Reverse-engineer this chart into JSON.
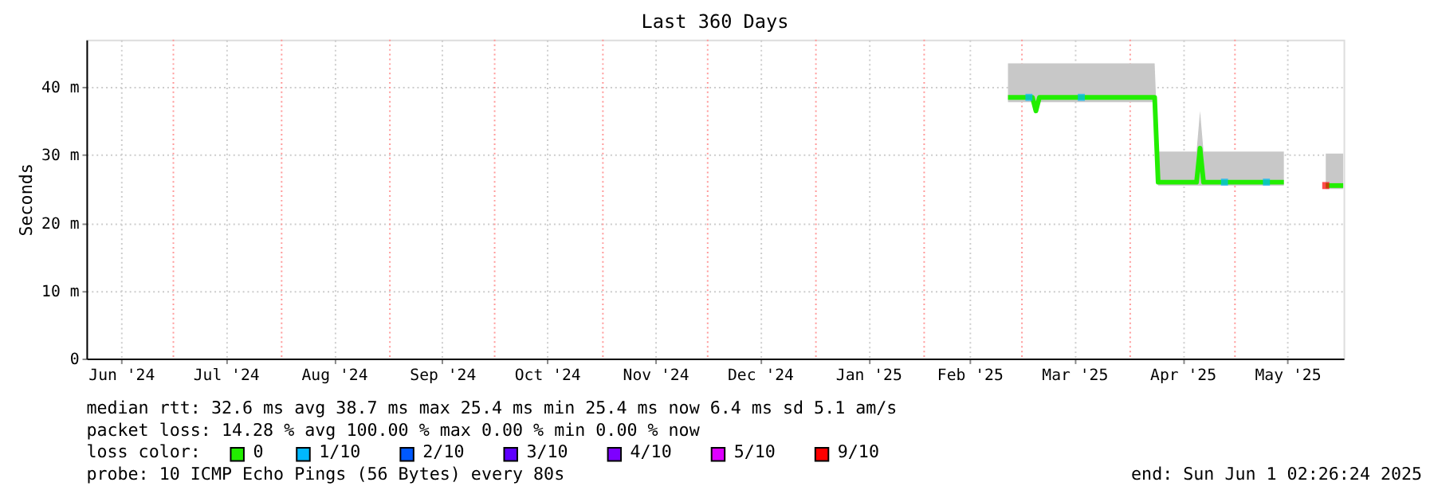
{
  "chart_data": {
    "type": "line",
    "title": "Last 360 Days",
    "ylabel": "Seconds",
    "x": [
      "2025-02-25",
      "2025-03-04",
      "2025-03-05",
      "2025-03-06",
      "2025-03-20",
      "2025-04-08",
      "2025-04-09",
      "2025-04-20",
      "2025-04-21",
      "2025-04-22",
      "2025-05-05",
      "2025-05-15",
      "2025-05-21",
      "2025-05-27",
      "2025-06-01"
    ],
    "series": [
      {
        "name": "0",
        "color": "#22ee00",
        "values": [
          38.5,
          38.5,
          36.5,
          38.5,
          38.5,
          38.5,
          26,
          26,
          31,
          26,
          26,
          26,
          null,
          25.5,
          25.5
        ],
        "lower": [
          37.8,
          37.8,
          36.2,
          37.8,
          37.8,
          37.8,
          25.5,
          25.5,
          25.5,
          25.5,
          25.5,
          25.5,
          null,
          25,
          25
        ],
        "upper": [
          43.5,
          43.5,
          43.5,
          43.5,
          43.5,
          43.5,
          30.5,
          30.5,
          36.5,
          30.5,
          30.5,
          30.5,
          null,
          30.2,
          30.2
        ]
      },
      {
        "name": "1/10",
        "type": "scatter",
        "marker": "square",
        "color": "#00b8ff",
        "x": [
          "2025-03-03",
          "2025-03-18",
          "2025-04-28",
          "2025-05-10"
        ],
        "values": [
          38.5,
          38.5,
          26,
          26
        ]
      },
      {
        "name": "2/10",
        "type": "scatter",
        "color": "#0059ff",
        "values": [
          null,
          null,
          null,
          null,
          null,
          null,
          null,
          null,
          null,
          null,
          null,
          null,
          null,
          null,
          null
        ]
      },
      {
        "name": "3/10",
        "type": "scatter",
        "color": "#5e00ff",
        "values": [
          null,
          null,
          null,
          null,
          null,
          null,
          null,
          null,
          null,
          null,
          null,
          null,
          null,
          null,
          null
        ]
      },
      {
        "name": "4/10",
        "type": "scatter",
        "color": "#7e00ff",
        "values": [
          null,
          null,
          null,
          null,
          null,
          null,
          null,
          null,
          null,
          null,
          null,
          null,
          null,
          null,
          null
        ]
      },
      {
        "name": "5/10",
        "type": "scatter",
        "color": "#dd00ff",
        "values": [
          null,
          null,
          null,
          null,
          null,
          null,
          null,
          null,
          null,
          null,
          null,
          null,
          null,
          null,
          null
        ]
      },
      {
        "name": "9/10",
        "type": "scatter",
        "marker": "square",
        "color": "#ff0000",
        "x": [
          "2025-05-27"
        ],
        "values": [
          25.5
        ]
      }
    ],
    "legend_title": "loss color:",
    "legend": "bottom",
    "grid": true,
    "xlim": [
      "2024-06-06T02:26",
      "2025-06-01T02:26"
    ],
    "xticks": [
      {
        "value": "2024-06-16",
        "label": "Jun '24"
      },
      {
        "value": "2024-07-16",
        "label": "Jul '24"
      },
      {
        "value": "2024-08-16",
        "label": "Aug '24"
      },
      {
        "value": "2024-09-16",
        "label": "Sep '24"
      },
      {
        "value": "2024-10-16",
        "label": "Oct '24"
      },
      {
        "value": "2024-11-16",
        "label": "Nov '24"
      },
      {
        "value": "2024-12-16",
        "label": "Dec '24"
      },
      {
        "value": "2025-01-16",
        "label": "Jan '25"
      },
      {
        "value": "2025-02-14",
        "label": "Feb '25"
      },
      {
        "value": "2025-03-16",
        "label": "Mar '25"
      },
      {
        "value": "2025-04-16",
        "label": "Apr '25"
      },
      {
        "value": "2025-05-16",
        "label": "May '25"
      }
    ],
    "ylim": [
      0,
      47
    ],
    "yticks": [
      0,
      {
        "value": 10,
        "label": "10 m"
      },
      {
        "value": 20,
        "label": "20 m"
      },
      {
        "value": 30,
        "label": "30 m"
      },
      {
        "value": 40,
        "label": "40 m"
      }
    ],
    "ref_lines": [
      {
        "axis": "x",
        "value": "2024-07-01",
        "color": "#ff9999",
        "line_style": "dotted"
      },
      {
        "axis": "x",
        "value": "2024-08-01",
        "color": "#ff9999",
        "line_style": "dotted"
      },
      {
        "axis": "x",
        "value": "2024-09-01",
        "color": "#ff9999",
        "line_style": "dotted"
      },
      {
        "axis": "x",
        "value": "2024-10-01",
        "color": "#ff9999",
        "line_style": "dotted"
      },
      {
        "axis": "x",
        "value": "2024-11-01",
        "color": "#ff9999",
        "line_style": "dotted"
      },
      {
        "axis": "x",
        "value": "2024-12-01",
        "color": "#ff9999",
        "line_style": "dotted"
      },
      {
        "axis": "x",
        "value": "2025-01-01",
        "color": "#ff9999",
        "line_style": "dotted"
      },
      {
        "axis": "x",
        "value": "2025-02-01",
        "color": "#ff9999",
        "line_style": "dotted"
      },
      {
        "axis": "x",
        "value": "2025-03-01",
        "color": "#ff9999",
        "line_style": "dotted"
      },
      {
        "axis": "x",
        "value": "2025-04-01",
        "color": "#ff9999",
        "line_style": "dotted"
      },
      {
        "axis": "x",
        "value": "2025-05-01",
        "color": "#ff9999",
        "line_style": "dotted"
      }
    ],
    "annotations": [
      "median rtt: 32.6 ms avg 38.7 ms max 25.4 ms min 25.4 ms now 6.4 ms sd 5.1 am/s",
      "packet loss: 14.28 % avg 100.00 % max 0.00 % min 0.00 % now",
      "probe: 10 ICMP Echo Pings (56 Bytes) every 80s",
      "end: Sun Jun 1 02:26:24 2025"
    ]
  }
}
